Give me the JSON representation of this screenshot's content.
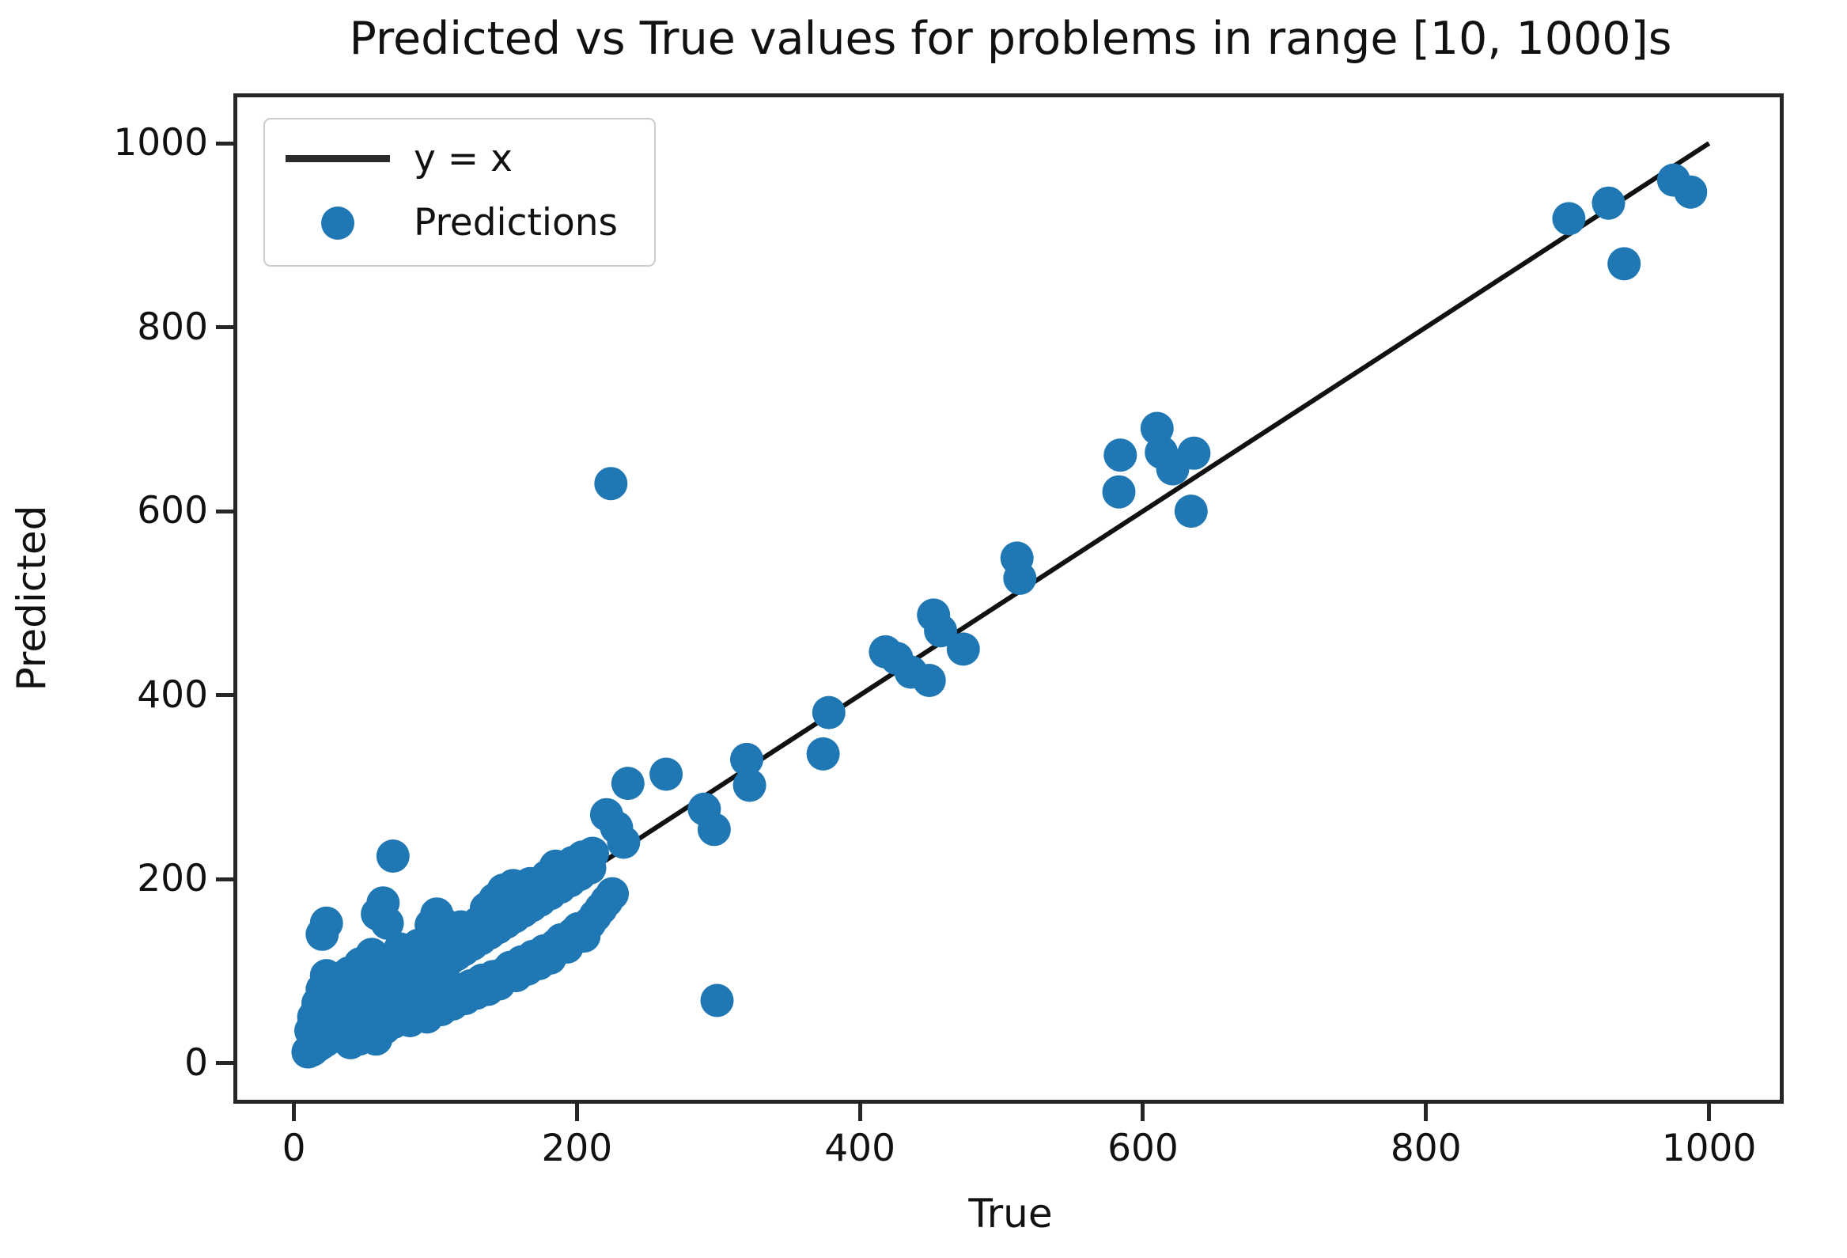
{
  "chart_data": {
    "type": "scatter",
    "title": "Predicted vs True values for problems in range [10, 1000]s",
    "xlabel": "True",
    "ylabel": "Predicted",
    "xlim": [
      -40,
      1050
    ],
    "ylim": [
      -40,
      1050
    ],
    "x_ticks": [
      0,
      200,
      400,
      600,
      800,
      1000
    ],
    "y_ticks": [
      0,
      200,
      400,
      600,
      800,
      1000
    ],
    "grid": false,
    "legend_position": "upper-left",
    "legend": [
      {
        "handle": "line",
        "label": "y = x"
      },
      {
        "handle": "marker",
        "label": "Predictions"
      }
    ],
    "colors": {
      "scatter": "#1f77b4",
      "identity_line": "#111111",
      "spine": "#262626",
      "text": "#111111",
      "legend_border": "#cccccc"
    },
    "identity_line": {
      "label": "y = x",
      "x": [
        10,
        1000
      ],
      "y": [
        10,
        1000
      ]
    },
    "marker_radius_px": 21,
    "series": [
      {
        "name": "Predictions",
        "marker": "circle",
        "color": "#1f77b4",
        "points": [
          [
            10,
            12
          ],
          [
            13,
            14
          ],
          [
            16,
            18
          ],
          [
            19,
            21
          ],
          [
            22,
            24
          ],
          [
            25,
            27
          ],
          [
            28,
            30
          ],
          [
            31,
            33
          ],
          [
            34,
            36
          ],
          [
            37,
            40
          ],
          [
            40,
            42
          ],
          [
            44,
            46
          ],
          [
            48,
            50
          ],
          [
            52,
            54
          ],
          [
            56,
            58
          ],
          [
            60,
            62
          ],
          [
            64,
            66
          ],
          [
            68,
            70
          ],
          [
            72,
            75
          ],
          [
            76,
            79
          ],
          [
            80,
            83
          ],
          [
            85,
            87
          ],
          [
            90,
            92
          ],
          [
            95,
            97
          ],
          [
            100,
            103
          ],
          [
            105,
            108
          ],
          [
            110,
            113
          ],
          [
            115,
            118
          ],
          [
            120,
            123
          ],
          [
            126,
            129
          ],
          [
            132,
            135
          ],
          [
            138,
            141
          ],
          [
            144,
            147
          ],
          [
            150,
            153
          ],
          [
            156,
            159
          ],
          [
            162,
            165
          ],
          [
            168,
            171
          ],
          [
            174,
            177
          ],
          [
            181,
            184
          ],
          [
            188,
            191
          ],
          [
            195,
            198
          ],
          [
            202,
            205
          ],
          [
            209,
            212
          ],
          [
            12,
            35
          ],
          [
            14,
            50
          ],
          [
            17,
            65
          ],
          [
            20,
            80
          ],
          [
            23,
            95
          ],
          [
            26,
            58
          ],
          [
            29,
            72
          ],
          [
            33,
            88
          ],
          [
            36,
            62
          ],
          [
            39,
            98
          ],
          [
            43,
            78
          ],
          [
            47,
            108
          ],
          [
            51,
            88
          ],
          [
            55,
            118
          ],
          [
            59,
            98
          ],
          [
            63,
            82
          ],
          [
            67,
            112
          ],
          [
            71,
            96
          ],
          [
            75,
            124
          ],
          [
            79,
            108
          ],
          [
            83,
            94
          ],
          [
            88,
            128
          ],
          [
            93,
            112
          ],
          [
            98,
            132
          ],
          [
            103,
            118
          ],
          [
            108,
            140
          ],
          [
            113,
            126
          ],
          [
            118,
            148
          ],
          [
            124,
            138
          ],
          [
            130,
            152
          ],
          [
            20,
            140
          ],
          [
            23,
            152
          ],
          [
            59,
            162
          ],
          [
            63,
            174
          ],
          [
            66,
            152
          ],
          [
            97,
            150
          ],
          [
            101,
            162
          ],
          [
            105,
            152
          ],
          [
            70,
            225
          ],
          [
            136,
            168
          ],
          [
            142,
            178
          ],
          [
            148,
            188
          ],
          [
            155,
            193
          ],
          [
            161,
            183
          ],
          [
            167,
            195
          ],
          [
            173,
            190
          ],
          [
            179,
            203
          ],
          [
            185,
            214
          ],
          [
            191,
            209
          ],
          [
            197,
            218
          ],
          [
            204,
            224
          ],
          [
            211,
            228
          ],
          [
            40,
            22
          ],
          [
            46,
            26
          ],
          [
            52,
            30
          ],
          [
            58,
            26
          ],
          [
            64,
            38
          ],
          [
            70,
            44
          ],
          [
            76,
            50
          ],
          [
            82,
            46
          ],
          [
            88,
            56
          ],
          [
            94,
            50
          ],
          [
            100,
            68
          ],
          [
            104,
            58
          ],
          [
            108,
            74
          ],
          [
            112,
            64
          ],
          [
            116,
            80
          ],
          [
            121,
            70
          ],
          [
            125,
            84
          ],
          [
            129,
            76
          ],
          [
            133,
            90
          ],
          [
            137,
            80
          ],
          [
            141,
            94
          ],
          [
            145,
            86
          ],
          [
            149,
            98
          ],
          [
            153,
            104
          ],
          [
            157,
            95
          ],
          [
            161,
            110
          ],
          [
            165,
            102
          ],
          [
            169,
            116
          ],
          [
            173,
            108
          ],
          [
            177,
            122
          ],
          [
            181,
            114
          ],
          [
            185,
            128
          ],
          [
            189,
            134
          ],
          [
            193,
            126
          ],
          [
            197,
            140
          ],
          [
            201,
            146
          ],
          [
            205,
            138
          ],
          [
            209,
            152
          ],
          [
            213,
            160
          ],
          [
            217,
            168
          ],
          [
            221,
            176
          ],
          [
            225,
            184
          ],
          [
            221,
            270
          ],
          [
            228,
            256
          ],
          [
            233,
            240
          ],
          [
            236,
            304
          ],
          [
            263,
            314
          ],
          [
            290,
            276
          ],
          [
            297,
            254
          ],
          [
            320,
            330
          ],
          [
            322,
            302
          ],
          [
            374,
            336
          ],
          [
            378,
            381
          ],
          [
            224,
            630
          ],
          [
            299,
            68
          ],
          [
            418,
            447
          ],
          [
            426,
            440
          ],
          [
            436,
            425
          ],
          [
            449,
            416
          ],
          [
            452,
            487
          ],
          [
            457,
            470
          ],
          [
            473,
            450
          ],
          [
            511,
            549
          ],
          [
            513,
            527
          ],
          [
            583,
            621
          ],
          [
            584,
            661
          ],
          [
            610,
            690
          ],
          [
            613,
            664
          ],
          [
            621,
            646
          ],
          [
            636,
            663
          ],
          [
            634,
            600
          ],
          [
            901,
            918
          ],
          [
            929,
            935
          ],
          [
            940,
            869
          ],
          [
            975,
            960
          ],
          [
            987,
            947
          ]
        ]
      }
    ]
  }
}
